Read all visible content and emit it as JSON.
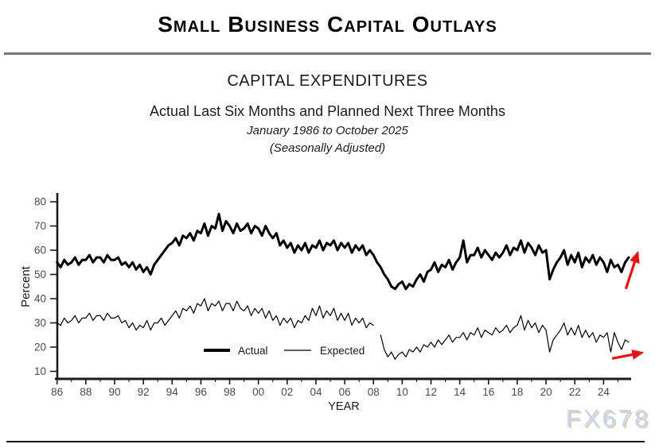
{
  "header": {
    "title": "Small Business Capital Outlays"
  },
  "chart": {
    "heading": "CAPITAL EXPENDITURES",
    "subheading": "Actual Last Six Months and Planned Next Three Months",
    "period": "January 1986 to October 2025",
    "note": "(Seasonally Adjusted)"
  },
  "watermark": "FX678",
  "colors": {
    "line": "#000000",
    "axis": "#1a1a1a",
    "tick_label": "#4a4a4a",
    "arrow_red": "#e81010",
    "watermark_blue": "#c7d7eb",
    "watermark_shadow": "#ddcebd",
    "title_rule_gray": "#777777",
    "bottom_rule_dark": "#15151c"
  },
  "chart_data": {
    "type": "line",
    "title": "CAPITAL EXPENDITURES",
    "subtitle": "Actual Last Six Months and Planned Next Three Months",
    "xlabel": "YEAR",
    "ylabel": "Percent",
    "xlim": [
      1986,
      2026
    ],
    "ylim": [
      10,
      80
    ],
    "grid": false,
    "y_ticks": [
      10,
      20,
      30,
      40,
      50,
      60,
      70,
      80
    ],
    "x_tick_labels": [
      "86",
      "88",
      "90",
      "92",
      "94",
      "96",
      "98",
      "00",
      "02",
      "04",
      "06",
      "08",
      "10",
      "12",
      "14",
      "16",
      "18",
      "20",
      "22",
      "24"
    ],
    "x_minor_tick_every_years": 1,
    "legend_position": "inside-bottom-center",
    "series": [
      {
        "name": "Actual",
        "style": "thick",
        "segments": [
          {
            "start": 1986.0,
            "step": 0.25,
            "values": [
              55,
              53,
              56,
              54,
              55,
              57,
              54,
              56,
              56,
              58,
              55,
              57,
              57,
              55,
              58,
              56,
              56,
              57,
              54,
              55,
              53,
              55,
              52,
              54,
              51,
              53,
              50,
              54,
              56,
              58,
              60,
              62,
              63,
              65,
              62,
              66,
              65,
              67,
              64,
              68,
              67,
              71,
              66,
              70,
              69,
              75,
              68,
              72,
              70,
              67,
              71,
              68,
              69,
              71,
              67,
              70,
              69,
              66,
              70,
              67,
              65,
              67,
              62,
              64,
              61,
              63,
              59,
              62,
              60,
              63,
              59,
              62,
              61,
              64,
              60,
              63,
              62,
              64,
              60,
              63,
              61,
              63,
              59,
              62,
              60,
              62,
              58,
              60,
              58,
              55,
              53,
              50,
              48,
              45,
              44,
              46,
              47,
              44,
              46,
              45,
              48,
              50,
              47,
              51,
              52,
              55,
              51,
              54,
              53,
              56,
              52,
              55,
              57,
              64,
              55,
              58,
              58,
              61,
              57,
              60,
              58,
              56,
              59,
              57,
              59,
              62,
              58,
              61,
              60,
              64,
              59,
              63,
              61,
              58,
              62,
              59,
              60,
              48,
              52,
              55,
              57,
              60,
              54,
              58,
              55,
              59,
              53,
              57,
              55,
              58,
              54,
              57,
              55,
              51,
              56,
              53,
              54,
              51,
              55,
              57
            ]
          }
        ]
      },
      {
        "name": "Expected",
        "style": "thin",
        "segments": [
          {
            "start": 1986.0,
            "step": 0.25,
            "values": [
              30,
              29,
              32,
              30,
              31,
              33,
              30,
              32,
              32,
              34,
              31,
              33,
              33,
              31,
              34,
              32,
              32,
              33,
              30,
              31,
              28,
              30,
              27,
              29,
              28,
              31,
              27,
              30,
              30,
              32,
              29,
              31,
              33,
              35,
              32,
              36,
              35,
              37,
              34,
              38,
              37,
              40,
              35,
              38,
              37,
              39,
              35,
              38,
              38,
              35,
              39,
              36,
              35,
              37,
              33,
              36,
              34,
              36,
              32,
              35,
              31,
              33,
              29,
              32,
              30,
              32,
              28,
              31,
              30,
              33,
              31,
              36,
              33,
              37,
              32,
              35,
              33,
              36,
              31,
              34,
              31,
              34,
              29,
              32,
              30,
              32,
              28,
              30,
              29
            ]
          },
          {
            "start": 2008.5,
            "step": 0.25,
            "values": [
              25,
              19,
              16,
              18,
              15,
              17,
              18,
              16,
              19,
              18,
              20,
              18,
              21,
              20,
              22,
              20,
              23,
              21,
              23,
              25,
              22,
              24,
              24,
              26,
              23,
              26,
              25,
              28,
              24,
              27,
              26,
              25,
              28,
              26,
              27,
              29,
              26,
              28,
              29,
              33,
              27,
              31,
              28,
              30,
              26,
              29,
              27,
              18,
              23,
              25,
              27,
              30,
              25,
              28,
              25,
              29,
              24,
              27,
              24,
              26,
              22,
              25,
              24,
              26,
              18,
              26,
              22,
              19,
              23,
              22
            ]
          }
        ]
      }
    ],
    "annotations": [
      {
        "type": "arrow",
        "target": "actual-series-end",
        "color": "#e81010",
        "x1": 2025.55,
        "y1": 44.0,
        "x2": 2026.35,
        "y2": 58.5
      },
      {
        "type": "arrow",
        "target": "expected-series-end",
        "color": "#e81010",
        "x1": 2024.6,
        "y1": 15.3,
        "x2": 2026.6,
        "y2": 17.6
      }
    ]
  }
}
